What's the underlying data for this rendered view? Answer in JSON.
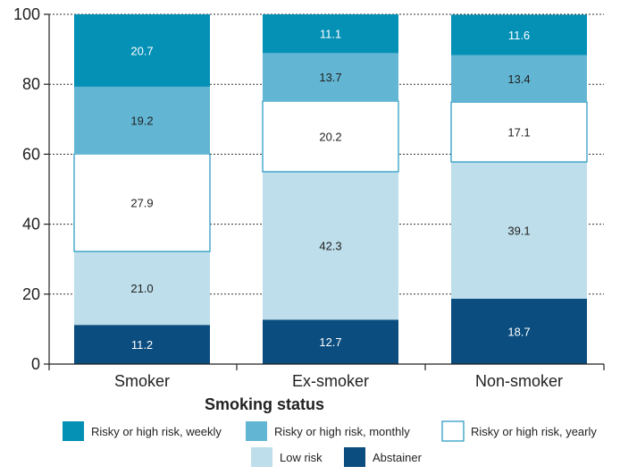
{
  "chart_data": {
    "type": "bar",
    "stacked": true,
    "orientation": "vertical",
    "categories": [
      "Smoker",
      "Ex-smoker",
      "Non-smoker"
    ],
    "series": [
      {
        "name": "Abstainer",
        "values": [
          11.2,
          12.7,
          18.7
        ],
        "color": "#0b4d7f",
        "label_color": "#ffffff",
        "border": null
      },
      {
        "name": "Low risk",
        "values": [
          21.0,
          42.3,
          39.1
        ],
        "color": "#bddeea",
        "label_color": "#222222",
        "border": null
      },
      {
        "name": "Risky or high risk, yearly",
        "values": [
          27.9,
          20.2,
          17.1
        ],
        "color": "#ffffff",
        "label_color": "#222222",
        "border": "#1f95c0"
      },
      {
        "name": "Risky or high risk, monthly",
        "values": [
          19.2,
          13.7,
          13.4
        ],
        "color": "#62b6d4",
        "label_color": "#222222",
        "border": null
      },
      {
        "name": "Risky or high risk, weekly",
        "values": [
          20.7,
          11.1,
          11.6
        ],
        "color": "#0590b6",
        "label_color": "#ffffff",
        "border": null
      }
    ],
    "xlabel": "Smoking status",
    "ylabel": "",
    "ylim": [
      0,
      100
    ],
    "yticks": [
      "0",
      "20",
      "40",
      "60",
      "80",
      "100"
    ],
    "grid": "dotted horizontal",
    "legend_position": "bottom",
    "legend_order": [
      "Risky or high risk, weekly",
      "Risky or high risk, monthly",
      "Risky or high risk, yearly",
      "Low risk",
      "Abstainer"
    ]
  }
}
